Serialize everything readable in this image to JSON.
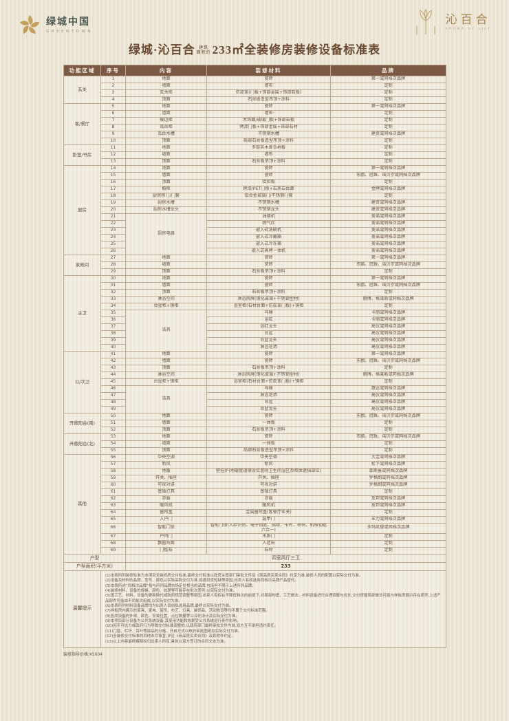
{
  "header": {
    "greentown": {
      "name": "绿城中国",
      "sub": "GREENTOWN"
    },
    "lily": {
      "name": "沁百合",
      "sub": "AROMA OF LILY"
    },
    "title": {
      "prefix": "绿城·沁百合",
      "note_line1": "建筑",
      "note_line2": "面积约",
      "main": "233㎡全装修房装修设备标准表"
    }
  },
  "table": {
    "headers": [
      "功能区域",
      "序号",
      "内容",
      "装修材料",
      "品牌"
    ],
    "groups": [
      {
        "area": "玄关",
        "rows": [
          [
            1,
            "地面",
            "瓷砖",
            "第一或同档次品牌"
          ],
          [
            2,
            "墙面",
            "墙布",
            "定制"
          ],
          [
            3,
            "玄关柜",
            "仿皮革(门板+饰部金属+饰部岩板)",
            "定制"
          ],
          [
            4,
            "顶面",
            "石膏板造型吊顶+涂料",
            "定制"
          ]
        ]
      },
      {
        "area": "客/餐厅",
        "rows": [
          [
            5,
            "地面",
            "瓷砖",
            "第一或同档次品牌"
          ],
          [
            6,
            "墙面",
            "墙布",
            "定制"
          ],
          [
            7,
            "餐边柜",
            "木饰面/玻璃门板+饰部岩板",
            "定制"
          ],
          [
            8,
            "岛台柜",
            "烤漆门板+饰部金属+饰部石材",
            "定制"
          ],
          [
            9,
            "岛台水槽",
            "不锈钢水槽",
            "建资或同档次品牌"
          ],
          [
            10,
            "顶面",
            "局部石膏板造型吊顶+涂料",
            "定制"
          ]
        ]
      },
      {
        "area": "卧室/书房",
        "rows": [
          [
            11,
            "地面",
            "多层实木复合地板",
            "定制"
          ],
          [
            12,
            "墙面",
            "墙布",
            "定制"
          ],
          [
            13,
            "顶面",
            "石膏板吊顶+涂料",
            "定制"
          ]
        ]
      },
      {
        "area": "厨房",
        "rows": [
          [
            14,
            "地面",
            "瓷砖",
            "第一或同档次品牌"
          ],
          [
            15,
            "墙面",
            "瓷砖",
            "东鹏、冠珠、诺贝尔或同档次品牌"
          ],
          [
            16,
            "顶面",
            "铝扣板",
            "定制"
          ],
          [
            17,
            "橱柜",
            "烤漆/PET门板+石英石台面",
            "金牌或同档次品牌"
          ],
          [
            18,
            "厨房移门/门套",
            "铝合金玻璃门/不锈钢门套",
            "定制"
          ],
          [
            19,
            "厨房水槽",
            "不锈钢水槽",
            "建资或同档次品牌"
          ],
          [
            20,
            "厨房水槽龙头",
            "不锈钢龙头",
            "建资或同档次品牌"
          ],
          [
            21,
            "厨房电器",
            "油烟机",
            "美诺或同档次品牌",
            6
          ],
          [
            22,
            null,
            "燃气灶",
            "美诺或同档次品牌"
          ],
          [
            23,
            null,
            "嵌入式洗碗机",
            "美诺或同档次品牌"
          ],
          [
            24,
            null,
            "嵌入式冷藏箱",
            "美诺或同档次品牌"
          ],
          [
            25,
            null,
            "嵌入式冷冻箱",
            "美诺或同档次品牌"
          ],
          [
            26,
            null,
            "嵌入式蒸烤一体机",
            "美诺或同档次品牌"
          ]
        ]
      },
      {
        "area": "家政间",
        "rows": [
          [
            27,
            "地面",
            "瓷砖",
            "第一或同档次品牌"
          ],
          [
            28,
            "墙面",
            "瓷砖",
            "东鹏、冠珠、诺贝尔或同档次品牌"
          ],
          [
            29,
            "顶面",
            "石膏板吊顶+涂料",
            "定制"
          ]
        ]
      },
      {
        "area": "主卫",
        "rows": [
          [
            30,
            "地面",
            "瓷砖",
            "第一或同档次品牌"
          ],
          [
            31,
            "墙面",
            "瓷砖",
            "东鹏、冠珠、诺贝尔或同档次品牌"
          ],
          [
            32,
            "顶面",
            "石膏板吊顶+涂料",
            "定制"
          ],
          [
            33,
            "淋浴空间",
            "淋浴房屏(钢化玻璃+不锈钢型材)",
            "丽博、格莱斯或同档次品牌"
          ],
          [
            34,
            "台盆柜+镜柜",
            "浴室柜(石材台面+仿皮革门板)+镜柜",
            "定制"
          ],
          [
            35,
            "洁具",
            "马桶",
            "卡丽或同档次品牌",
            6
          ],
          [
            36,
            null,
            "浴缸",
            "卡丽或同档次品牌"
          ],
          [
            37,
            null,
            "浴缸龙头",
            "高仪或同档次品牌"
          ],
          [
            38,
            null,
            "台盆",
            "高仪或同档次品牌"
          ],
          [
            39,
            null,
            "台盆龙头",
            "高仪或同档次品牌"
          ],
          [
            40,
            null,
            "淋浴花洒",
            "高仪或同档次品牌"
          ]
        ]
      },
      {
        "area": "公/次卫",
        "rows": [
          [
            41,
            "地面",
            "瓷砖",
            "第一或同档次品牌"
          ],
          [
            42,
            "墙面",
            "瓷砖",
            "东鹏、冠珠、诺贝尔或同档次品牌"
          ],
          [
            43,
            "顶面",
            "石膏板吊顶+涂料",
            "定制"
          ],
          [
            44,
            "淋浴空间",
            "淋浴房屏(钢化玻璃+不锈钢型材)",
            "丽博、格莱斯或同档次品牌"
          ],
          [
            45,
            "台盆柜+镜柜",
            "浴室柜(石材台面+仿皮革门板)+镜柜",
            "定制"
          ],
          [
            46,
            "洁具",
            "马桶",
            "惠达或同档次品牌",
            4
          ],
          [
            47,
            null,
            "淋浴花洒",
            "高仪或同档次品牌"
          ],
          [
            48,
            null,
            "台盆",
            "高仪或同档次品牌"
          ],
          [
            49,
            null,
            "台盆龙头",
            "高仪或同档次品牌"
          ]
        ]
      },
      {
        "area": "开敞阳台(南)",
        "rows": [
          [
            50,
            "地面",
            "瓷砖",
            "东鹏、冠珠、诺贝尔或同档次品牌"
          ],
          [
            51,
            "墙面",
            "一体板",
            "定制"
          ],
          [
            52,
            "顶面",
            "石膏板吊顶+涂料",
            "定制"
          ]
        ]
      },
      {
        "area": "开敞阳台(北)",
        "rows": [
          [
            53,
            "地面",
            "瓷砖",
            "东鹏、冠珠、诺贝尔或同档次品牌"
          ],
          [
            54,
            "墙面",
            "一体板",
            "定制"
          ],
          [
            55,
            "顶面",
            "局部石膏板造型吊顶+涂料",
            "定制"
          ]
        ]
      },
      {
        "area": "其他",
        "rows": [
          [
            56,
            "中央空调",
            "中央空调",
            "大金或同档次品牌"
          ],
          [
            57,
            "新风",
            "新风",
            "松下或同档次品牌"
          ],
          [
            58,
            "地暖",
            "壁挂炉(地暖管道铺设位置除卫生间湿区及柜体遮挡部位)",
            "菲斯曼或同档次品牌"
          ],
          [
            59,
            "开关、插座",
            "开关、插座",
            "罗格朗或同档次品牌"
          ],
          [
            60,
            "可视对讲",
            "可视对讲",
            "罗格朗或同档次品牌"
          ],
          [
            61,
            "基础灯具",
            "基础灯具",
            "定制"
          ],
          [
            62,
            "凉霸",
            "凉霸",
            "友邦或同档次品牌"
          ],
          [
            63,
            "暖风机",
            "暖风机",
            "友邦或同档次品牌"
          ],
          [
            64,
            "窗帘盒",
            "金属窗帘盒(客餐厅玄关)",
            "定制"
          ],
          [
            65,
            "入户门",
            "装甲门",
            "王力或同档次品牌"
          ],
          [
            66,
            "智能门锁",
            "智能门锁(人脸识别、电子钥匙、指纹、卡片、密码、机械钥匙六合一)",
            "多玛凯拔或同档次品牌"
          ],
          [
            67,
            "户内门",
            "木质门",
            "定制"
          ],
          [
            68,
            "飘窗台面",
            "人造石",
            "定制"
          ],
          [
            69,
            "门槛石",
            "石材",
            "定制"
          ]
        ]
      }
    ],
    "footer": {
      "unit_label": "户型",
      "unit_value": "四室两厅三卫",
      "area_label": "户型面积(平方米)",
      "area_value": "233",
      "tips_label": "温馨提示",
      "tips": [
        "(1)本表所列装修标准为本项目全装修房交付标准,最终交付标准以政府主管部门审批文件及《商品房买卖合同》约定为准,装修人员的配置以实际交付为准。",
        "(2)设备及材料的品牌、型号、颜色以实际采购交付为准,如遇供货短缺等原因,出卖人有权选用同档次品牌产品替代。",
        "(3)本表所述“同档次品牌”指与所列品牌市场定位相当的品牌,包括但不限于上述所列品牌。",
        "(4)装修材料、设备的规格、颜色、纹理等可能存在批次差异,以实际交付为准。",
        "(5)因工艺、材料、设备的更新换代或政府规范调整等原因,出卖人有权在不降低档次的前提下,对局部构造、工艺做法、材料设备进行合理调整与优化,交付房屋局部做法可能与样板房展示存在差异,上述产品部件可能由不同批次组成,以实际交付为准。",
        "(6)本表所列材料设备品牌均为出卖人目前拟选用品牌,最终以实际交付为准。",
        "(7)样板房内展示的家具、家电、窗帘、布艺、灯具、装饰品、活动陈设等均不属于交付标准范围。",
        "(8)各类设备的外观、颜色、安装位置、点位数量等以深化设计及实际交付为准。",
        "(9)本项目部分设备为公共系统设备,其使用功能和效果受公共系统运行条件影响。",
        "(10)因不可抗力或政府行为导致交付标准调整的,以政府部门最终审批文件为准,双方互不承担违约责任。",
        "(11)门窗、栏杆、百叶等部品的分格、开启方式以政府审批图纸及实际交付为准。",
        "(12)全装修交付标准的其他未尽事宜,详见《商品房买卖合同》及其附件约定。",
        "(13)以上内容最终解释权归出卖人所有,具体以双方签订的合同文本为准。"
      ]
    }
  },
  "footnote": "装修指导价格:¥5004"
}
